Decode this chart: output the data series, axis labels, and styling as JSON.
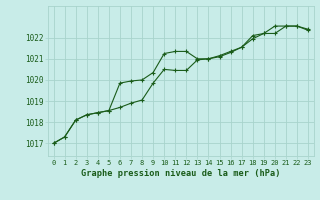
{
  "title": "Graphe pression niveau de la mer (hPa)",
  "background_color": "#c8ece8",
  "grid_color": "#a8d4cc",
  "line_color": "#1a5c1a",
  "marker_color": "#1a5c1a",
  "x_ticks": [
    0,
    1,
    2,
    3,
    4,
    5,
    6,
    7,
    8,
    9,
    10,
    11,
    12,
    13,
    14,
    15,
    16,
    17,
    18,
    19,
    20,
    21,
    22,
    23
  ],
  "ylim": [
    1016.4,
    1023.5
  ],
  "yticks": [
    1017,
    1018,
    1019,
    1020,
    1021,
    1022
  ],
  "series1_x": [
    0,
    1,
    2,
    3,
    4,
    5,
    6,
    7,
    8,
    9,
    10,
    11,
    12,
    13,
    14,
    15,
    16,
    17,
    18,
    19,
    20,
    21,
    22,
    23
  ],
  "series1_y": [
    1017.0,
    1017.3,
    1018.1,
    1018.35,
    1018.45,
    1018.55,
    1019.85,
    1019.95,
    1020.0,
    1020.35,
    1021.25,
    1021.35,
    1021.35,
    1021.0,
    1021.0,
    1021.1,
    1021.3,
    1021.55,
    1022.1,
    1022.2,
    1022.55,
    1022.55,
    1022.55,
    1022.4
  ],
  "series2_x": [
    0,
    1,
    2,
    3,
    4,
    5,
    6,
    7,
    8,
    9,
    10,
    11,
    12,
    13,
    14,
    15,
    16,
    17,
    18,
    19,
    20,
    21,
    22,
    23
  ],
  "series2_y": [
    1017.0,
    1017.3,
    1018.1,
    1018.35,
    1018.45,
    1018.55,
    1018.7,
    1018.9,
    1019.05,
    1019.85,
    1020.5,
    1020.45,
    1020.45,
    1020.95,
    1021.0,
    1021.15,
    1021.35,
    1021.55,
    1021.95,
    1022.2,
    1022.2,
    1022.55,
    1022.55,
    1022.35
  ]
}
